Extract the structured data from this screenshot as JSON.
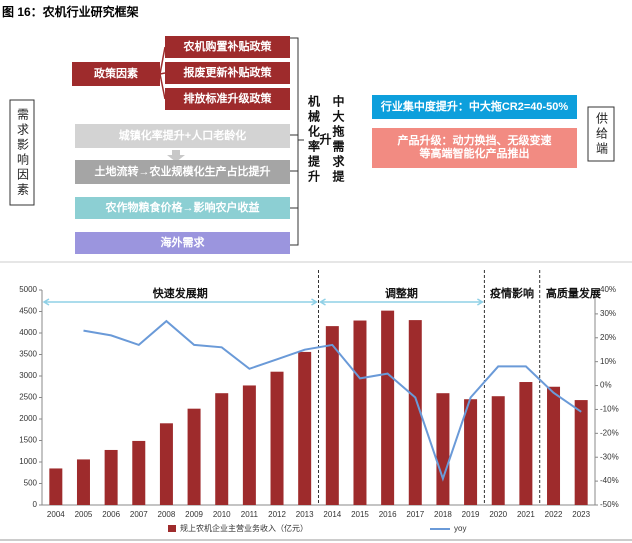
{
  "title": "图 16：农机行业研究框架",
  "diagram": {
    "demand_label": "需求影响因素",
    "policy_label": "政策因素",
    "policies": [
      "农机购置补贴政策",
      "报废更新补贴政策",
      "排放标准升级政策"
    ],
    "factors": [
      "城镇化率提升+人口老龄化",
      "土地流转→农业规模化生产占比提升",
      "农作物粮食价格→影响农户收益",
      "海外需求"
    ],
    "mechanism": [
      "机械化率提升",
      "中大拖需求提升"
    ],
    "supply_items": [
      "行业集中度提升：中大拖CR2=40-50%",
      "产品升级：动力换挡、无级变速等高端智能化产品推出"
    ],
    "supply_label": "供给端"
  },
  "chart_data": {
    "type": "combo",
    "categories": [
      "2004",
      "2005",
      "2006",
      "2007",
      "2008",
      "2009",
      "2010",
      "2011",
      "2012",
      "2013",
      "2014",
      "2015",
      "2016",
      "2017",
      "2018",
      "2019",
      "2020",
      "2021",
      "2022",
      "2023"
    ],
    "series": [
      {
        "name": "规上农机企业主营业务收入（亿元）",
        "type": "bar",
        "color": "#9e2b2c",
        "values": [
          850,
          1060,
          1280,
          1490,
          1900,
          2240,
          2600,
          2780,
          3100,
          3560,
          4160,
          4290,
          4520,
          4300,
          2600,
          2460,
          2530,
          2860,
          2750,
          2440
        ]
      },
      {
        "name": "yoy",
        "type": "line",
        "axis": "y2",
        "color": "#6a9ad8",
        "values": [
          null,
          23,
          21,
          17,
          27,
          17,
          16,
          7,
          11,
          15,
          17,
          3,
          5,
          -5,
          -39,
          -5,
          8,
          8,
          -3,
          -11
        ]
      }
    ],
    "annotations": [
      "快速发展期",
      "调整期",
      "疫情影响",
      "高质量发展"
    ],
    "ylim": [
      0,
      5000
    ],
    "yticks": [
      0,
      500,
      1000,
      1500,
      2000,
      2500,
      3000,
      3500,
      4000,
      4500,
      5000
    ],
    "y2lim": [
      -50,
      40
    ],
    "y2ticks": [
      {
        "value": -50,
        "label": "-50%"
      },
      {
        "value": -40,
        "label": "-40%"
      },
      {
        "value": -30,
        "label": "-30%"
      },
      {
        "value": -20,
        "label": "-20%"
      },
      {
        "value": -10,
        "label": "-10%"
      },
      {
        "value": 0,
        "label": "0%"
      },
      {
        "value": 10,
        "label": "10%"
      },
      {
        "value": 20,
        "label": "20%"
      },
      {
        "value": 30,
        "label": "30%"
      },
      {
        "value": 40,
        "label": "40%"
      }
    ]
  }
}
